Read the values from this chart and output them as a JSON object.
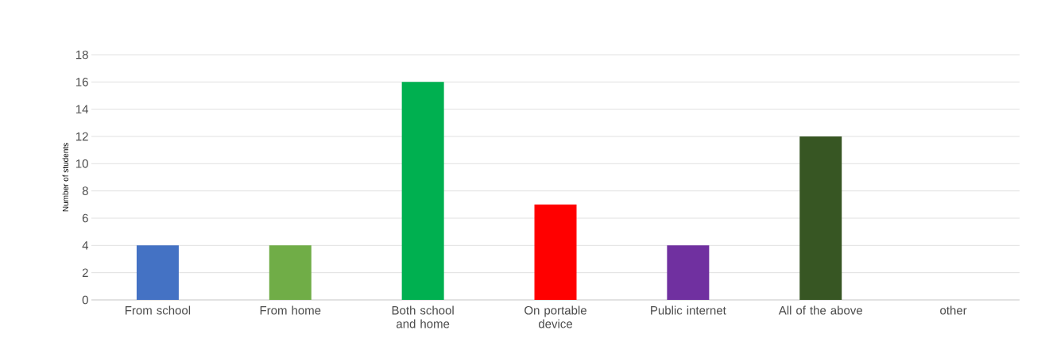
{
  "chart_data": {
    "type": "bar",
    "ylabel": "Number of students",
    "categories": [
      "From school",
      "From home",
      "Both school and home",
      "On portable device",
      "Public internet",
      "All of the above",
      "other"
    ],
    "values": [
      4,
      4,
      16,
      7,
      4,
      12,
      0
    ],
    "colors": [
      "#4472c4",
      "#70ad47",
      "#00b050",
      "#ff0000",
      "#7030a0",
      "#375623",
      "#808080"
    ],
    "ylim": [
      0,
      18
    ],
    "yticks": [
      0,
      2,
      4,
      6,
      8,
      10,
      12,
      14,
      16,
      18
    ],
    "grid": "y"
  }
}
